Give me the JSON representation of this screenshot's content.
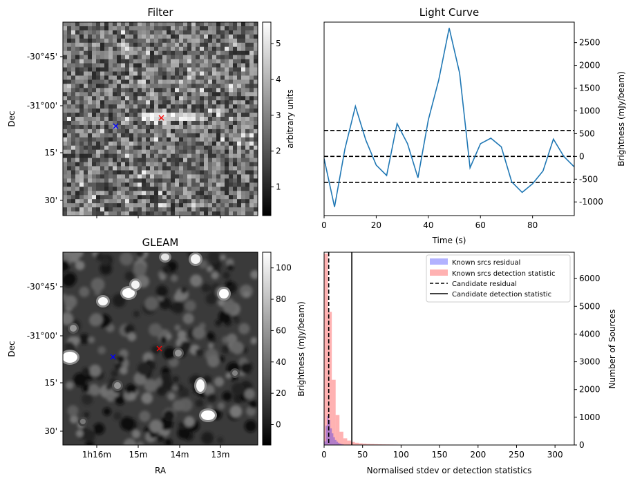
{
  "chart_data": [
    {
      "type": "heatmap",
      "title": "Filter",
      "ylabel": "Dec",
      "yticklabels": [
        "-30°45'",
        "-31°00'",
        "15'",
        "30'"
      ],
      "colorbar": {
        "label": "arbitrary units",
        "ticks": [
          "1",
          "2",
          "3",
          "4",
          "5"
        ],
        "range": [
          0.2,
          5.6
        ]
      },
      "markers": [
        {
          "name": "candidate",
          "symbol": "x",
          "color": "#ff0000"
        },
        {
          "name": "reference",
          "symbol": "x",
          "color": "#0000ff"
        }
      ]
    },
    {
      "type": "line",
      "title": "Light Curve",
      "xlabel": "Time (s)",
      "ylabel": "Brightness (mJy/beam)",
      "xlim": [
        0,
        96
      ],
      "ylim": [
        -1300,
        2950
      ],
      "xticks": [
        0,
        20,
        40,
        60,
        80
      ],
      "yticks": [
        -1000,
        -500,
        0,
        500,
        1000,
        1500,
        2000,
        2500
      ],
      "x": [
        0,
        4,
        8,
        12,
        16,
        20,
        24,
        28,
        32,
        36,
        40,
        44,
        48,
        52,
        56,
        60,
        64,
        68,
        72,
        76,
        80,
        84,
        88,
        92,
        96
      ],
      "y": [
        -50,
        -1110,
        170,
        1100,
        360,
        -190,
        -420,
        720,
        280,
        -470,
        800,
        1680,
        2820,
        1830,
        -250,
        280,
        400,
        210,
        -560,
        -790,
        -600,
        -320,
        380,
        0,
        -230
      ],
      "hlines": [
        570,
        0,
        -570
      ],
      "color": "#1f77b4"
    },
    {
      "type": "heatmap",
      "title": "GLEAM",
      "xlabel": "RA",
      "ylabel": "Dec",
      "xticklabels": [
        "1h16m",
        "15m",
        "14m",
        "13m"
      ],
      "yticklabels": [
        "-30°45'",
        "-31°00'",
        "15'",
        "30'"
      ],
      "colorbar": {
        "label": "Brightness (mJy/beam)",
        "ticks": [
          "0",
          "20",
          "40",
          "60",
          "80",
          "100"
        ],
        "range": [
          -13,
          110
        ]
      },
      "markers": [
        {
          "name": "candidate",
          "symbol": "x",
          "color": "#ff0000"
        },
        {
          "name": "reference",
          "symbol": "x",
          "color": "#0000ff"
        }
      ]
    },
    {
      "type": "bar",
      "xlabel": "Normalised stdev or detection statistics",
      "ylabel": "Number of Sources",
      "xlim": [
        0,
        325
      ],
      "ylim": [
        0,
        6950
      ],
      "xticks": [
        0,
        50,
        100,
        150,
        200,
        250,
        300
      ],
      "yticks": [
        0,
        1000,
        2000,
        3000,
        4000,
        5000,
        6000
      ],
      "series": [
        {
          "name": "Known srcs residual",
          "color": "#0000ff",
          "bin_width": 2,
          "bin_start": 0,
          "counts": [
            130,
            700,
            1050,
            900,
            600,
            420,
            280,
            180,
            120,
            80,
            50,
            30,
            20,
            10
          ]
        },
        {
          "name": "Known srcs detection statistic",
          "color": "#ff0000",
          "bin_width": 5,
          "bin_start": 0,
          "counts": [
            6900,
            4800,
            2350,
            1080,
            480,
            240,
            160,
            110,
            80,
            60,
            50,
            40,
            35,
            30,
            25,
            22,
            20,
            18,
            16,
            14,
            13,
            12,
            11,
            10,
            10,
            9,
            8,
            8,
            7,
            7,
            6,
            6,
            5,
            5,
            5,
            4,
            4,
            4,
            3,
            3,
            3,
            3,
            2,
            2,
            2,
            2,
            2,
            2,
            2,
            2,
            2,
            1,
            1,
            1,
            1,
            1,
            1,
            1,
            1,
            1,
            1,
            1,
            1,
            1,
            1
          ]
        }
      ],
      "vlines": [
        {
          "name": "Candidate residual",
          "x": 6,
          "style": "dashed"
        },
        {
          "name": "Candidate detection statistic",
          "x": 36,
          "style": "solid"
        }
      ]
    }
  ]
}
